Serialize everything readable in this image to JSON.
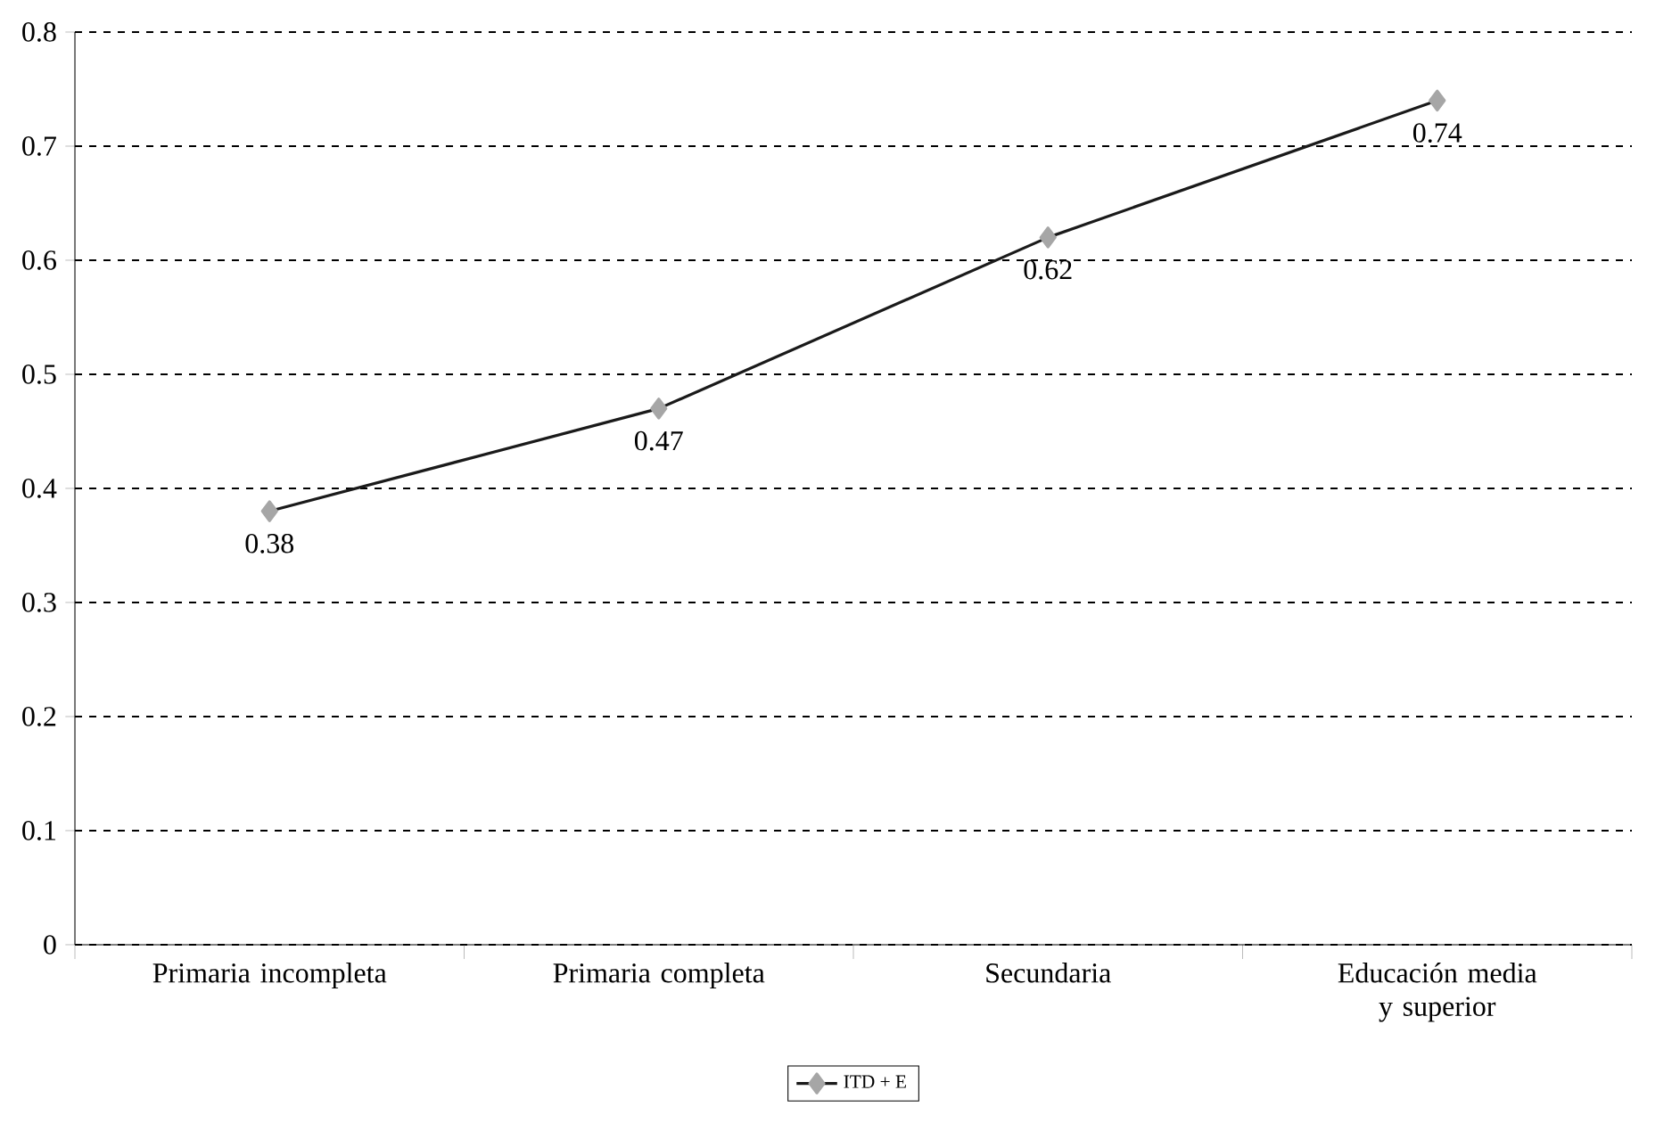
{
  "chart_data": {
    "type": "line",
    "categories": [
      "Primaria incompleta",
      "Primaria completa",
      "Secundaria",
      "Educación media y superior"
    ],
    "series": [
      {
        "name": "ITD + E",
        "color": "#1a1a1a",
        "values": [
          0.38,
          0.47,
          0.62,
          0.74
        ]
      }
    ],
    "ylim": [
      0,
      0.8
    ],
    "yticks": [
      0,
      0.1,
      0.2,
      0.3,
      0.4,
      0.5,
      0.6,
      0.7,
      0.8
    ],
    "grid": "y",
    "legend": "bottom",
    "marker": "diamond",
    "line_style": "solid",
    "data_labels": true
  }
}
